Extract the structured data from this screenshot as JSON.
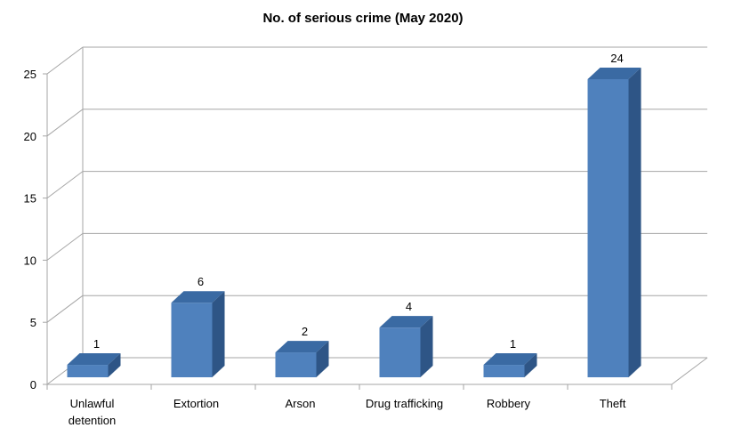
{
  "chart_data": {
    "type": "bar",
    "title": "No. of serious crime (May 2020)",
    "xlabel": "",
    "ylabel": "",
    "categories": [
      [
        "Unlawful",
        "detention"
      ],
      [
        "Extortion"
      ],
      [
        "Arson"
      ],
      [
        "Drug trafficking"
      ],
      [
        "Robbery"
      ],
      [
        "Theft"
      ]
    ],
    "values": [
      1,
      6,
      2,
      4,
      1,
      24
    ],
    "ylim": [
      0,
      25
    ],
    "yticks": [
      0,
      5,
      10,
      15,
      20,
      25
    ],
    "grid": true,
    "legend": "none",
    "colors": {
      "bar_front": "#4f81bd",
      "bar_top": "#3a6aa3",
      "bar_side": "#2e5586",
      "grid": "#a6a6a6"
    }
  }
}
